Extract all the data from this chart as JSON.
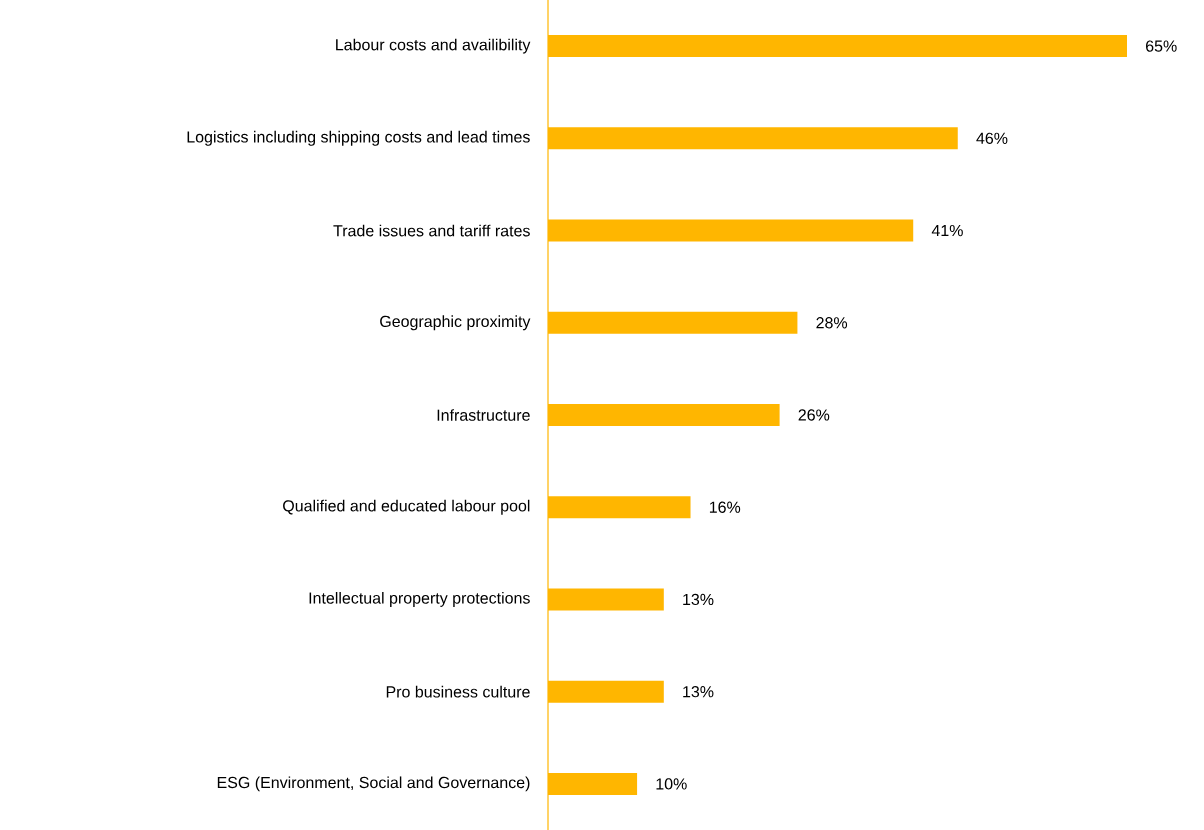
{
  "chart_data": {
    "type": "bar",
    "orientation": "horizontal",
    "color": "#ffb600",
    "categories": [
      "Labour costs and availibility",
      "Logistics including shipping costs and lead times",
      "Trade issues and tariff rates",
      "Geographic proximity",
      "Infrastructure",
      "Qualified and educated labour pool",
      "Intellectual property protections",
      "Pro business culture",
      "ESG (Environment, Social and Governance)"
    ],
    "values": [
      65,
      46,
      41,
      28,
      26,
      16,
      13,
      13,
      10
    ],
    "value_labels": [
      "65%",
      "46%",
      "41%",
      "28%",
      "26%",
      "16%",
      "13%",
      "13%",
      "10%"
    ]
  }
}
